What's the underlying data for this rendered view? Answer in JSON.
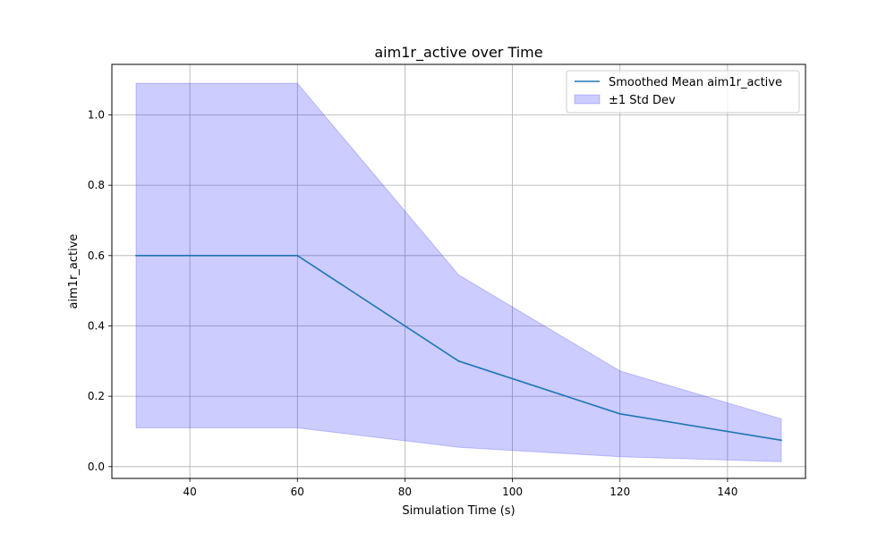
{
  "chart_data": {
    "type": "line",
    "title": "aim1r_active over Time",
    "xlabel": "Simulation Time (s)",
    "ylabel": "aim1r_active",
    "xlim": [
      25.5,
      154.5
    ],
    "ylim": [
      -0.0335,
      1.1436
    ],
    "xticks": [
      40,
      60,
      80,
      100,
      120,
      140
    ],
    "yticks": [
      0.0,
      0.2,
      0.4,
      0.6,
      0.8,
      1.0
    ],
    "xtick_labels": [
      "40",
      "60",
      "80",
      "100",
      "120",
      "140"
    ],
    "ytick_labels": [
      "0.0",
      "0.2",
      "0.4",
      "0.6",
      "0.8",
      "1.0"
    ],
    "grid": true,
    "legend_position": "top-right",
    "x": [
      30,
      60,
      90,
      120,
      150
    ],
    "series": [
      {
        "name": "Smoothed Mean aim1r_active",
        "kind": "line",
        "color": "#1f77b4",
        "values": [
          0.6,
          0.6,
          0.3,
          0.15,
          0.075
        ]
      },
      {
        "name": "±1 Std Dev",
        "kind": "band",
        "color": "#0000ff",
        "lower": [
          0.11,
          0.11,
          0.055,
          0.028,
          0.014
        ],
        "upper": [
          1.09,
          1.09,
          0.545,
          0.272,
          0.136
        ]
      }
    ]
  }
}
